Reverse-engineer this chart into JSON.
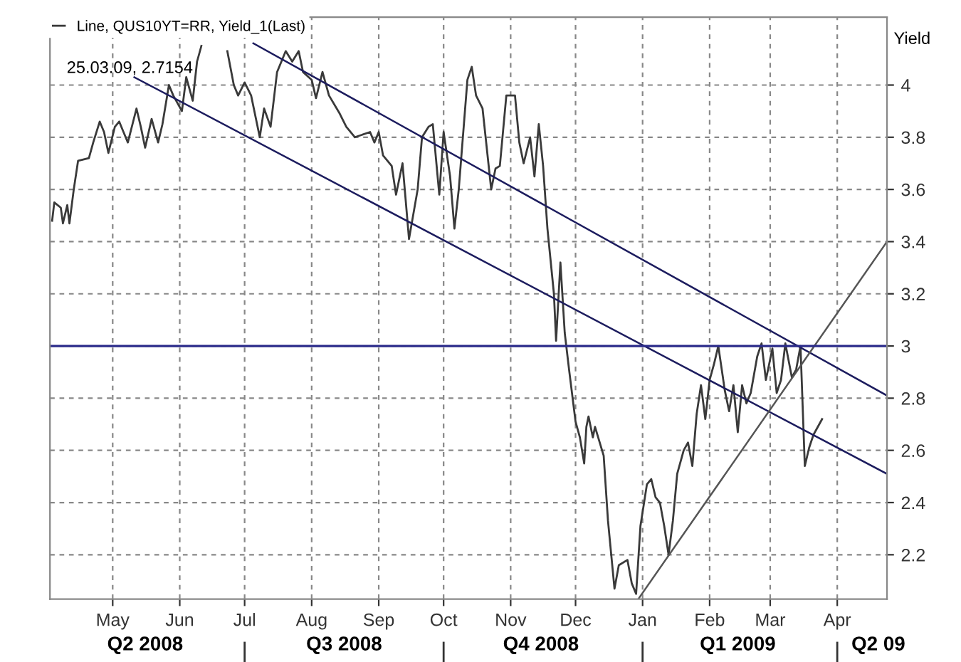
{
  "chart_data": {
    "type": "line",
    "ylabel": "Yield",
    "legend": "top left",
    "grid": true,
    "line_style": "solid",
    "marker": "none",
    "annotations": [
      "25.03.09, 2.7154"
    ],
    "xlim": [
      "2008-04-02",
      "2009-04-24"
    ],
    "ylim": [
      2.03,
      4.26
    ],
    "xticks": [
      {
        "value": "2008-05-01",
        "label": "May"
      },
      {
        "value": "2008-06-01",
        "label": "Jun"
      },
      {
        "value": "2008-07-01",
        "label": "Jul"
      },
      {
        "value": "2008-08-01",
        "label": "Aug"
      },
      {
        "value": "2008-09-01",
        "label": "Sep"
      },
      {
        "value": "2008-10-01",
        "label": "Oct"
      },
      {
        "value": "2008-11-01",
        "label": "Nov"
      },
      {
        "value": "2008-12-01",
        "label": "Dec"
      },
      {
        "value": "2009-01-01",
        "label": "Jan"
      },
      {
        "value": "2009-02-01",
        "label": "Feb"
      },
      {
        "value": "2009-03-01",
        "label": "Mar"
      },
      {
        "value": "2009-04-01",
        "label": "Apr"
      }
    ],
    "x2lim": [
      "2008-04-02",
      "2009-04-24"
    ],
    "x2ticks": [
      {
        "value": "2008-05-16",
        "label": "Q2 2008"
      },
      {
        "value": "2008-07-01",
        "label": null
      },
      {
        "value": "2008-08-16",
        "label": "Q3 2008"
      },
      {
        "value": "2008-10-01",
        "label": null
      },
      {
        "value": "2008-11-15",
        "label": "Q4 2008"
      },
      {
        "value": "2009-01-01",
        "label": null
      },
      {
        "value": "2009-02-14",
        "label": "Q1 2009"
      },
      {
        "value": "2009-04-01",
        "label": null
      },
      {
        "value": "2009-04-20",
        "label": "Q2 09"
      }
    ],
    "yticks": [
      2.2,
      2.4,
      2.6,
      2.8,
      3,
      3.2,
      3.4,
      3.6,
      3.8,
      4
    ],
    "ref_lines": [
      {
        "axis": "y",
        "value": 3,
        "label": null,
        "color": "#2b2b8a",
        "line_style": "solid"
      }
    ],
    "series": [
      {
        "name": "Line, QUS10YT=RR, Yield_1(Last)",
        "color": "#3a3a3a",
        "x": [
          "2008-04-03",
          "2008-04-04",
          "2008-04-07",
          "2008-04-08",
          "2008-04-10",
          "2008-04-11",
          "2008-04-13",
          "2008-04-15",
          "2008-04-20",
          "2008-04-22",
          "2008-04-25",
          "2008-04-27",
          "2008-04-29",
          "2008-05-02",
          "2008-05-04",
          "2008-05-06",
          "2008-05-08",
          "2008-05-12",
          "2008-05-14",
          "2008-05-16",
          "2008-05-19",
          "2008-05-22",
          "2008-05-24",
          "2008-05-27",
          "2008-05-29",
          "2008-06-02",
          "2008-06-04",
          "2008-06-07",
          "2008-06-09",
          "2008-06-11",
          "2008-06-17",
          "2008-06-23",
          "2008-06-26",
          "2008-06-28",
          "2008-07-01",
          "2008-07-04",
          "2008-07-08",
          "2008-07-10",
          "2008-07-13",
          "2008-07-16",
          "2008-07-18",
          "2008-07-20",
          "2008-07-23",
          "2008-07-26",
          "2008-07-28",
          "2008-08-01",
          "2008-08-03",
          "2008-08-06",
          "2008-08-09",
          "2008-08-14",
          "2008-08-17",
          "2008-08-21",
          "2008-08-28",
          "2008-08-30",
          "2008-09-01",
          "2008-09-03",
          "2008-09-07",
          "2008-09-09",
          "2008-09-12",
          "2008-09-15",
          "2008-09-19",
          "2008-09-21",
          "2008-09-24",
          "2008-09-26",
          "2008-09-29",
          "2008-10-01",
          "2008-10-04",
          "2008-10-06",
          "2008-10-08",
          "2008-10-12",
          "2008-10-14",
          "2008-10-16",
          "2008-10-19",
          "2008-10-23",
          "2008-10-25",
          "2008-10-27",
          "2008-10-30",
          "2008-11-01",
          "2008-11-03",
          "2008-11-05",
          "2008-11-07",
          "2008-11-10",
          "2008-11-12",
          "2008-11-14",
          "2008-11-16",
          "2008-11-18",
          "2008-11-21",
          "2008-11-22",
          "2008-11-24",
          "2008-11-26",
          "2008-11-28",
          "2008-12-01",
          "2008-12-03",
          "2008-12-05",
          "2008-12-06",
          "2008-12-07",
          "2008-12-09",
          "2008-12-10",
          "2008-12-14",
          "2008-12-16",
          "2008-12-19",
          "2008-12-21",
          "2008-12-25",
          "2008-12-27",
          "2008-12-29",
          "2008-12-31",
          "2009-01-03",
          "2009-01-05",
          "2009-01-07",
          "2009-01-09",
          "2009-01-11",
          "2009-01-13",
          "2009-01-15",
          "2009-01-17",
          "2009-01-20",
          "2009-01-22",
          "2009-01-24",
          "2009-01-26",
          "2009-01-28",
          "2009-01-30",
          "2009-02-01",
          "2009-02-03",
          "2009-02-05",
          "2009-02-08",
          "2009-02-10",
          "2009-02-12",
          "2009-02-14",
          "2009-02-16",
          "2009-02-18",
          "2009-02-20",
          "2009-02-23",
          "2009-02-25",
          "2009-02-27",
          "2009-03-02",
          "2009-03-04",
          "2009-03-06",
          "2009-03-08",
          "2009-03-11",
          "2009-03-13",
          "2009-03-15",
          "2009-03-17",
          "2009-03-19",
          "2009-03-21",
          "2009-03-25"
        ],
        "values": [
          3.48,
          3.55,
          3.53,
          3.47,
          3.54,
          3.47,
          3.6,
          3.71,
          3.72,
          3.78,
          3.86,
          3.82,
          3.74,
          3.84,
          3.86,
          3.82,
          3.78,
          3.91,
          3.84,
          3.76,
          3.87,
          3.78,
          3.85,
          4.0,
          3.96,
          3.9,
          4.03,
          3.94,
          4.09,
          4.15,
          null,
          4.13,
          4.0,
          3.96,
          4.01,
          3.96,
          3.8,
          3.91,
          3.84,
          4.05,
          4.09,
          4.13,
          4.09,
          4.13,
          4.05,
          4.02,
          3.95,
          4.05,
          3.96,
          3.89,
          3.84,
          3.8,
          3.82,
          3.78,
          3.82,
          3.73,
          3.69,
          3.58,
          3.7,
          3.41,
          3.6,
          3.8,
          3.84,
          3.85,
          3.58,
          3.82,
          3.65,
          3.45,
          3.6,
          4.02,
          4.07,
          3.96,
          3.91,
          3.6,
          3.68,
          3.69,
          3.96,
          3.96,
          3.96,
          3.78,
          3.7,
          3.8,
          3.65,
          3.85,
          3.69,
          3.45,
          3.2,
          3.02,
          3.32,
          3.05,
          2.91,
          2.71,
          2.65,
          2.55,
          2.69,
          2.73,
          2.65,
          2.69,
          2.58,
          2.33,
          2.07,
          2.16,
          2.18,
          2.09,
          2.05,
          2.31,
          2.47,
          2.49,
          2.42,
          2.4,
          2.31,
          2.2,
          2.33,
          2.51,
          2.6,
          2.63,
          2.54,
          2.74,
          2.85,
          2.72,
          2.87,
          2.93,
          3.0,
          2.83,
          2.75,
          2.85,
          2.67,
          2.85,
          2.78,
          2.82,
          2.96,
          3.01,
          2.87,
          2.99,
          2.82,
          2.87,
          3.01,
          2.88,
          2.91,
          3.0,
          2.54,
          2.61,
          2.66,
          2.72
        ]
      },
      {
        "type": "line",
        "color": "#1c1c5e",
        "x": [
          "2008-07-05",
          "2009-04-24"
        ],
        "values": [
          4.16,
          2.81
        ]
      },
      {
        "type": "line",
        "color": "#1c1c5e",
        "x": [
          "2008-05-11",
          "2009-04-24"
        ],
        "values": [
          4.03,
          2.51
        ]
      },
      {
        "type": "line",
        "color": "#555555",
        "x": [
          "2008-12-30",
          "2009-04-24"
        ],
        "values": [
          2.03,
          3.4
        ]
      }
    ]
  }
}
